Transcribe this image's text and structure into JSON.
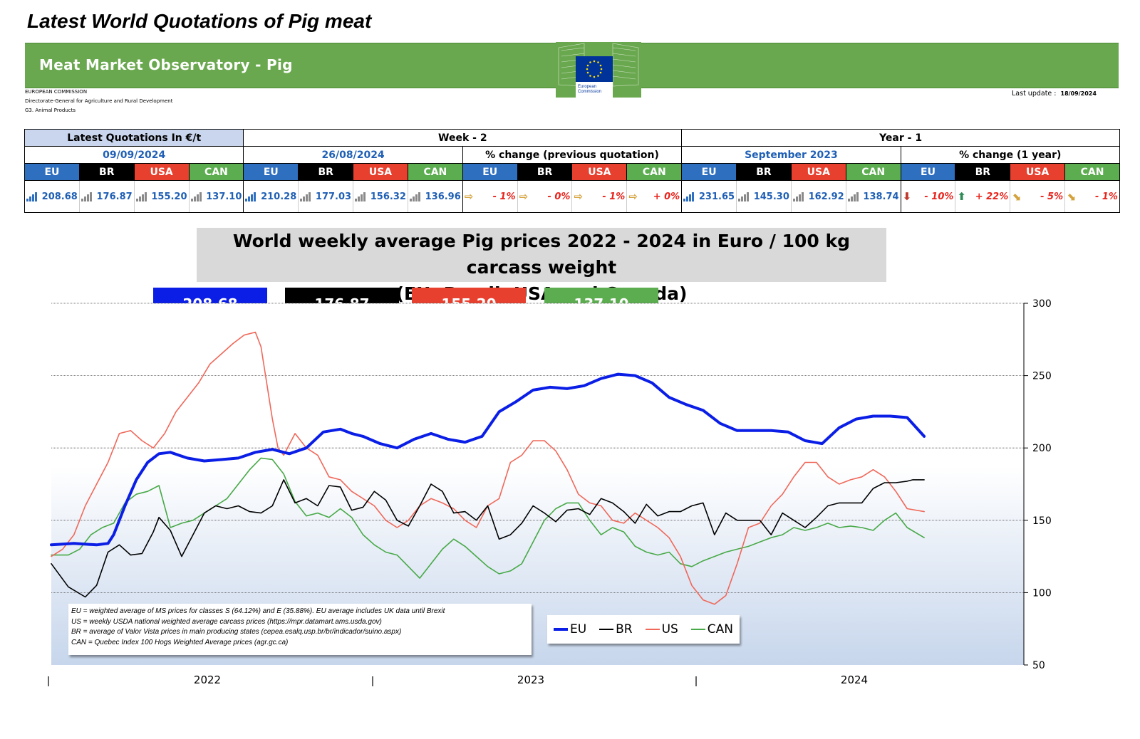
{
  "page_title": "Latest World Quotations of Pig meat",
  "banner": {
    "title": "Meat Market Observatory - Pig",
    "logo_text": [
      "European",
      "Commission"
    ]
  },
  "meta": {
    "org": "EUROPEAN COMMISSION",
    "dg": "Directorate-General for Agriculture and Rural Development",
    "unit": "G3. Animal Products",
    "last_update_label": "Last update :",
    "last_update_value": "18/09/2024"
  },
  "table": {
    "latest_label": "Latest Quotations In €/t",
    "week_label": "Week - 2",
    "year_label": "Year - 1",
    "latest_date": "09/09/2024",
    "week_date": "26/08/2024",
    "week_change_label": "% change (previous quotation)",
    "year_date": "September 2023",
    "year_change_label": "% change (1 year)",
    "col_names": [
      "EU",
      "BR",
      "USA",
      "CAN"
    ],
    "latest_values": [
      "208.68",
      "176.87",
      "155.20",
      "137.10"
    ],
    "week_values": [
      "210.28",
      "177.03",
      "156.32",
      "136.96"
    ],
    "week_changes": [
      "- 1%",
      "- 0%",
      "- 1%",
      "+ 0%"
    ],
    "year_values": [
      "231.65",
      "145.30",
      "162.92",
      "138.74"
    ],
    "year_changes": [
      "- 10%",
      "+ 22%",
      "- 5%",
      "- 1%"
    ],
    "arrow_icons": {
      "week": [
        "right-arrow-icon",
        "right-arrow-icon",
        "right-arrow-icon",
        "right-arrow-icon"
      ],
      "year": [
        "down-arrow-icon",
        "up-arrow-icon",
        "down-right-arrow-icon",
        "down-right-arrow-icon"
      ]
    },
    "colors": {
      "EU": "#2e6fc0",
      "BR": "#000000",
      "USA": "#e8402f",
      "CAN": "#5cad50"
    }
  },
  "chart_title_line1": "World weekly average Pig prices 2022 - 2024  in Euro / 100 kg carcass weight",
  "chart_title_line2": "(EU, Brazil, USA and Canada)",
  "pills": [
    "208.68",
    "176.87",
    "155.20",
    "137.10"
  ],
  "notes": [
    "EU    = weighted average of MS prices for classes S (64.12%) and E (35.88%). EU average includes UK data  until Brexit",
    "US    = weekly USDA national weighted average carcass prices (https://mpr.datamart.ams.usda.gov)",
    "BR    = average of Valor Vista prices in main producing states (cepea.esalq.usp.br/br/indicador/suino.aspx)",
    "CAN = Quebec Index 100 Hogs Weighted Average prices (agr.gc.ca)"
  ],
  "legend": [
    "EU",
    "BR",
    "US",
    "CAN"
  ],
  "chart_data": {
    "type": "line",
    "x_labels": [
      "2022",
      "2023",
      "2024"
    ],
    "y_ticks": [
      50,
      100,
      150,
      200,
      250,
      300
    ],
    "ylim": [
      50,
      300
    ],
    "x_range_weeks": [
      0,
      156
    ],
    "grid": true,
    "legend_position": "bottom-right",
    "series": [
      {
        "name": "EU",
        "color": "#0a1ee6",
        "width": 4,
        "x": [
          0,
          4,
          8,
          10,
          11,
          13,
          15,
          17,
          19,
          21,
          24,
          27,
          30,
          33,
          36,
          39,
          42,
          45,
          48,
          51,
          53,
          55,
          58,
          61,
          64,
          67,
          70,
          73,
          76,
          79,
          82,
          85,
          88,
          91,
          94,
          97,
          100,
          103,
          106,
          109,
          112,
          115,
          118,
          121,
          124,
          127,
          130,
          133,
          136,
          139,
          142,
          145,
          148,
          151,
          154
        ],
        "y": [
          133,
          134,
          133,
          134,
          140,
          160,
          178,
          190,
          196,
          197,
          193,
          191,
          192,
          193,
          197,
          199,
          196,
          200,
          211,
          213,
          210,
          208,
          203,
          200,
          206,
          210,
          206,
          204,
          208,
          225,
          232,
          240,
          242,
          241,
          243,
          248,
          251,
          250,
          245,
          235,
          230,
          226,
          217,
          212,
          212,
          212,
          211,
          205,
          203,
          214,
          220,
          222,
          222,
          221,
          208
        ]
      },
      {
        "name": "BR",
        "color": "#000000",
        "width": 1.6,
        "x": [
          0,
          3,
          6,
          8,
          10,
          12,
          14,
          16,
          18,
          19,
          21,
          23,
          25,
          27,
          29,
          31,
          33,
          35,
          37,
          39,
          41,
          43,
          45,
          47,
          49,
          51,
          53,
          55,
          57,
          59,
          61,
          63,
          65,
          67,
          69,
          71,
          73,
          75,
          77,
          79,
          81,
          83,
          85,
          87,
          89,
          91,
          93,
          95,
          97,
          99,
          101,
          103,
          105,
          107,
          109,
          111,
          113,
          115,
          117,
          119,
          121,
          123,
          125,
          127,
          129,
          131,
          133,
          135,
          137,
          139,
          141,
          143,
          145,
          147,
          149,
          151,
          152,
          154
        ],
        "y": [
          120,
          104,
          97,
          105,
          128,
          133,
          126,
          127,
          142,
          152,
          143,
          125,
          140,
          155,
          160,
          158,
          160,
          156,
          155,
          160,
          178,
          162,
          165,
          160,
          174,
          173,
          157,
          159,
          170,
          164,
          150,
          146,
          160,
          175,
          170,
          155,
          156,
          150,
          160,
          137,
          140,
          148,
          160,
          155,
          149,
          157,
          158,
          154,
          165,
          162,
          156,
          148,
          161,
          153,
          156,
          156,
          160,
          162,
          140,
          155,
          150,
          150,
          150,
          140,
          155,
          150,
          145,
          152,
          160,
          162,
          162,
          162,
          172,
          176,
          176,
          177,
          178,
          178
        ]
      },
      {
        "name": "US",
        "color": "#f0685a",
        "width": 1.6,
        "x": [
          0,
          2,
          4,
          6,
          8,
          10,
          12,
          14,
          16,
          18,
          20,
          22,
          24,
          26,
          28,
          30,
          32,
          34,
          36,
          37,
          39,
          40,
          41,
          43,
          45,
          47,
          49,
          51,
          53,
          55,
          57,
          59,
          61,
          63,
          65,
          67,
          69,
          71,
          73,
          75,
          77,
          79,
          81,
          83,
          85,
          87,
          89,
          91,
          93,
          95,
          97,
          99,
          101,
          103,
          105,
          107,
          109,
          111,
          113,
          115,
          117,
          119,
          121,
          123,
          125,
          127,
          129,
          131,
          133,
          135,
          137,
          139,
          141,
          143,
          145,
          147,
          149,
          151,
          154
        ],
        "y": [
          125,
          130,
          140,
          160,
          175,
          190,
          210,
          212,
          205,
          200,
          210,
          225,
          235,
          245,
          258,
          265,
          272,
          278,
          280,
          270,
          220,
          200,
          195,
          210,
          200,
          195,
          180,
          178,
          170,
          165,
          160,
          150,
          145,
          150,
          160,
          165,
          162,
          158,
          150,
          145,
          160,
          165,
          190,
          195,
          205,
          205,
          198,
          185,
          168,
          162,
          160,
          150,
          148,
          155,
          150,
          145,
          138,
          125,
          105,
          95,
          92,
          98,
          120,
          145,
          148,
          160,
          168,
          180,
          190,
          190,
          180,
          175,
          178,
          180,
          185,
          180,
          170,
          158,
          156
        ]
      },
      {
        "name": "CAN",
        "color": "#47a947",
        "width": 1.6,
        "x": [
          0,
          3,
          5,
          7,
          9,
          11,
          13,
          15,
          17,
          19,
          21,
          23,
          25,
          27,
          29,
          31,
          33,
          35,
          37,
          39,
          41,
          43,
          45,
          47,
          49,
          51,
          53,
          55,
          57,
          59,
          61,
          63,
          65,
          67,
          69,
          71,
          73,
          75,
          77,
          79,
          81,
          83,
          85,
          87,
          89,
          91,
          93,
          95,
          97,
          99,
          101,
          103,
          105,
          107,
          109,
          111,
          113,
          115,
          117,
          119,
          121,
          123,
          125,
          127,
          129,
          131,
          133,
          135,
          137,
          139,
          141,
          143,
          145,
          147,
          149,
          151,
          154
        ],
        "y": [
          126,
          126,
          130,
          140,
          145,
          148,
          162,
          168,
          170,
          174,
          145,
          148,
          150,
          155,
          160,
          165,
          175,
          185,
          193,
          192,
          182,
          163,
          153,
          155,
          152,
          158,
          152,
          140,
          133,
          128,
          126,
          118,
          110,
          120,
          130,
          137,
          132,
          125,
          118,
          113,
          115,
          120,
          135,
          150,
          158,
          162,
          162,
          150,
          140,
          145,
          142,
          132,
          128,
          126,
          128,
          120,
          118,
          122,
          125,
          128,
          130,
          132,
          135,
          138,
          140,
          145,
          143,
          145,
          148,
          145,
          146,
          145,
          143,
          150,
          155,
          145,
          138
        ]
      }
    ]
  }
}
